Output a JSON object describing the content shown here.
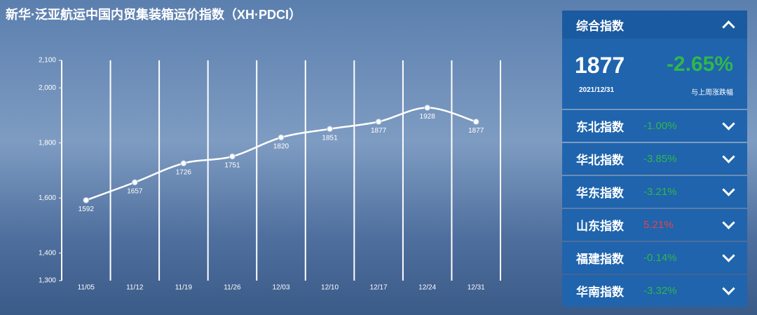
{
  "chart_data": {
    "type": "line",
    "title": "新华·泛亚航运中国内贸集装箱运价指数（XH·PDCI）",
    "categories": [
      "11/05",
      "11/12",
      "11/19",
      "11/26",
      "12/03",
      "12/10",
      "12/17",
      "12/24",
      "12/31"
    ],
    "values": [
      1592,
      1657,
      1726,
      1751,
      1820,
      1851,
      1877,
      1928,
      1877
    ],
    "color": "#ffffff",
    "ylim": [
      1300,
      2100
    ],
    "yticks": [
      {
        "value": 1300,
        "label": "1,300"
      },
      {
        "value": 1400,
        "label": "1,400"
      },
      {
        "value": 1600,
        "label": "1,600"
      },
      {
        "value": 1800,
        "label": "1,800"
      },
      {
        "value": 2000,
        "label": "2,000"
      },
      {
        "value": 2100,
        "label": "2,100"
      }
    ],
    "grid": true
  },
  "panel": {
    "header": "综合指数",
    "value": "1877",
    "change": "-2.65%",
    "date": "2021/12/31",
    "change_label": "与上周涨跌幅",
    "rows": [
      {
        "name": "东北指数",
        "change": "-1.00%",
        "color": "#2fb84a"
      },
      {
        "name": "华北指数",
        "change": "-3.85%",
        "color": "#2fb84a"
      },
      {
        "name": "华东指数",
        "change": "-3.21%",
        "color": "#2fb84a"
      },
      {
        "name": "山东指数",
        "change": "5.21%",
        "color": "#e8424a"
      },
      {
        "name": "福建指数",
        "change": "-0.14%",
        "color": "#2fb84a"
      },
      {
        "name": "华南指数",
        "change": "-3.32%",
        "color": "#2fb84a"
      }
    ]
  }
}
